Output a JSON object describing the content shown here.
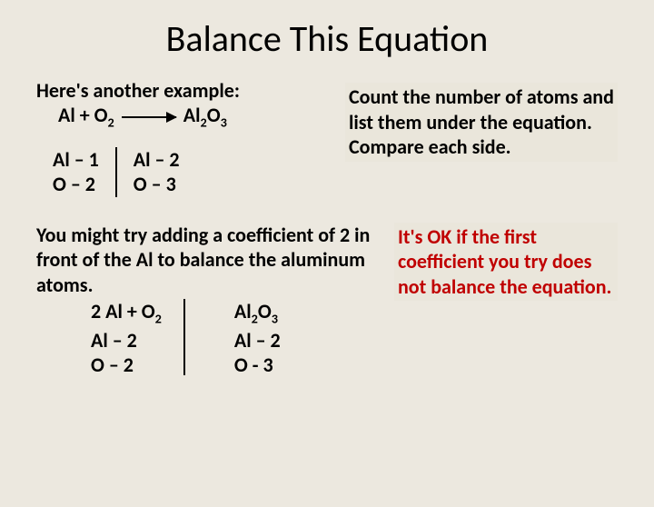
{
  "title": "Balance This Equation",
  "intro": "Here's another example:",
  "equation1": {
    "lhs_pre": "Al  +  O",
    "lhs_sub": "2",
    "rhs_pre": "Al",
    "rhs_sub1": "2",
    "rhs_mid": "O",
    "rhs_sub2": "3"
  },
  "count1": {
    "left": {
      "al": "Al – 1",
      "o": "O – 2"
    },
    "right": {
      "al": "Al – 2",
      "o": "O – 3"
    }
  },
  "note1": "Count the number of atoms and list them under the equation.  Compare each side.",
  "para2": "You might try adding a coefficient of 2 in front of the Al to balance the aluminum atoms.",
  "equation2": {
    "lhs_pre": "2 Al  + O",
    "lhs_sub": "2",
    "rhs_pre": "Al",
    "rhs_sub1": "2",
    "rhs_mid": "O",
    "rhs_sub2": "3"
  },
  "count2": {
    "left": {
      "al": "Al – 2",
      "o": "O – 2"
    },
    "right": {
      "al": "Al – 2",
      "o": "O - 3"
    }
  },
  "note2": "It's OK if the first coefficient you try does not balance the equation.",
  "colors": {
    "background": "#ece8df",
    "note_bg": "#eae6db",
    "red_text": "#c00000",
    "text": "#000000"
  },
  "typography": {
    "title_fontsize": 40,
    "body_fontsize": 22,
    "body_weight": "bold"
  }
}
